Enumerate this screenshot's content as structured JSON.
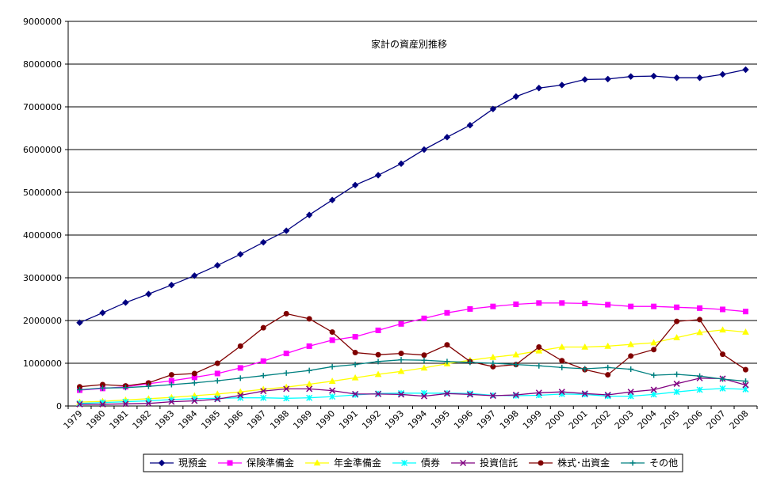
{
  "chart_data": {
    "type": "line",
    "title": "家計の資産別推移",
    "xlabel": "",
    "ylabel": "",
    "x": [
      "1979",
      "1980",
      "1981",
      "1982",
      "1983",
      "1984",
      "1985",
      "1986",
      "1987",
      "1988",
      "1989",
      "1990",
      "1991",
      "1992",
      "1993",
      "1994",
      "1995",
      "1996",
      "1997",
      "1998",
      "1999",
      "2000",
      "2001",
      "2002",
      "2003",
      "2004",
      "2005",
      "2006",
      "2007",
      "2008"
    ],
    "ylim": [
      0,
      9000000
    ],
    "yticks": [
      "0",
      "1000000",
      "2000000",
      "3000000",
      "4000000",
      "5000000",
      "6000000",
      "7000000",
      "8000000",
      "9000000"
    ],
    "grid": true,
    "legend_position": "bottom",
    "series": [
      {
        "name": "現預金",
        "color": "#000080",
        "marker": "diamond",
        "values": [
          1950000,
          2180000,
          2420000,
          2620000,
          2830000,
          3050000,
          3290000,
          3550000,
          3830000,
          4100000,
          4470000,
          4820000,
          5170000,
          5400000,
          5670000,
          6000000,
          6290000,
          6570000,
          6950000,
          7240000,
          7440000,
          7510000,
          7640000,
          7650000,
          7710000,
          7720000,
          7680000,
          7680000,
          7760000,
          7870000
        ]
      },
      {
        "name": "保険準備金",
        "color": "#ff00ff",
        "marker": "square",
        "values": [
          370000,
          410000,
          450000,
          520000,
          590000,
          670000,
          760000,
          890000,
          1050000,
          1230000,
          1400000,
          1540000,
          1620000,
          1770000,
          1920000,
          2050000,
          2180000,
          2270000,
          2330000,
          2380000,
          2410000,
          2410000,
          2400000,
          2370000,
          2330000,
          2330000,
          2310000,
          2290000,
          2260000,
          2210000
        ]
      },
      {
        "name": "年金準備金",
        "color": "#ffff00",
        "marker": "triangle",
        "values": [
          90000,
          110000,
          140000,
          170000,
          200000,
          240000,
          280000,
          330000,
          390000,
          440000,
          510000,
          580000,
          660000,
          740000,
          810000,
          890000,
          990000,
          1070000,
          1140000,
          1200000,
          1290000,
          1380000,
          1380000,
          1400000,
          1440000,
          1480000,
          1600000,
          1720000,
          1780000,
          1730000
        ]
      },
      {
        "name": "債券",
        "color": "#00ffff",
        "marker": "star",
        "values": [
          60000,
          80000,
          100000,
          120000,
          150000,
          170000,
          180000,
          190000,
          190000,
          180000,
          190000,
          220000,
          260000,
          290000,
          300000,
          300000,
          300000,
          290000,
          250000,
          240000,
          250000,
          280000,
          270000,
          230000,
          230000,
          270000,
          330000,
          380000,
          410000,
          390000
        ]
      },
      {
        "name": "投資信託",
        "color": "#800080",
        "marker": "x",
        "values": [
          40000,
          40000,
          50000,
          60000,
          100000,
          120000,
          160000,
          250000,
          350000,
          400000,
          400000,
          360000,
          280000,
          280000,
          270000,
          230000,
          290000,
          270000,
          240000,
          260000,
          310000,
          330000,
          290000,
          260000,
          330000,
          380000,
          520000,
          650000,
          640000,
          490000
        ]
      },
      {
        "name": "株式･出資金",
        "color": "#800000",
        "marker": "circle",
        "values": [
          450000,
          500000,
          470000,
          540000,
          730000,
          760000,
          1000000,
          1400000,
          1830000,
          2160000,
          2040000,
          1730000,
          1250000,
          1200000,
          1230000,
          1190000,
          1430000,
          1040000,
          920000,
          970000,
          1380000,
          1060000,
          850000,
          730000,
          1170000,
          1320000,
          1980000,
          2020000,
          1210000,
          850000
        ]
      },
      {
        "name": "その他",
        "color": "#008080",
        "marker": "plus",
        "values": [
          380000,
          420000,
          430000,
          460000,
          500000,
          540000,
          590000,
          650000,
          710000,
          770000,
          830000,
          920000,
          970000,
          1040000,
          1080000,
          1070000,
          1040000,
          1020000,
          1000000,
          970000,
          940000,
          900000,
          870000,
          900000,
          860000,
          720000,
          740000,
          700000,
          630000,
          580000
        ]
      }
    ]
  }
}
